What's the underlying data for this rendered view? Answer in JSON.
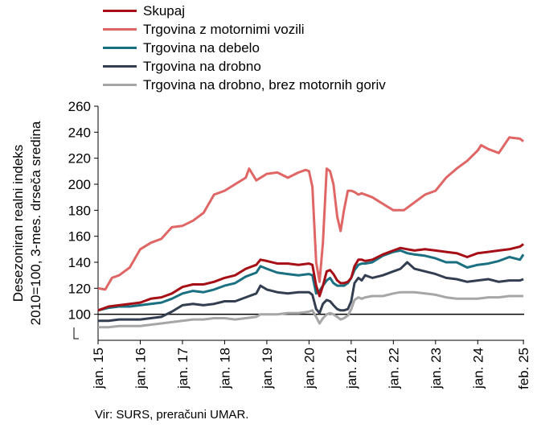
{
  "chart_data": {
    "type": "line",
    "ylabel": "Desezoniran realni indeks\n2010=100, 3-mes. drseča sredina",
    "ylim": [
      80,
      260
    ],
    "yticks": [
      100,
      120,
      140,
      160,
      180,
      200,
      220,
      240,
      260
    ],
    "ytick_labels": [
      "100",
      "120",
      "140",
      "160",
      "180",
      "200",
      "220",
      "240",
      "260"
    ],
    "xlim": [
      2015.0,
      2025.1
    ],
    "xticks": [
      2015,
      2016,
      2017,
      2018,
      2019,
      2020,
      2021,
      2022,
      2023,
      2024,
      2025.083
    ],
    "xtick_labels": [
      "jan. 15",
      "jan. 16",
      "jan. 17",
      "jan. 18",
      "jan. 19",
      "jan. 20",
      "jan. 21",
      "jan. 22",
      "jan. 23",
      "jan. 24",
      "feb. 25"
    ],
    "baseline": 100,
    "legend_position": "top-left",
    "grid": false,
    "source": "Vir: SURS, preračuni UMAR.",
    "series": [
      {
        "name": "Skupaj",
        "color": "#a50f15",
        "x": [
          2015.0,
          2015.25,
          2015.5,
          2015.75,
          2016.0,
          2016.25,
          2016.5,
          2016.75,
          2017.0,
          2017.25,
          2017.5,
          2017.75,
          2018.0,
          2018.25,
          2018.5,
          2018.75,
          2018.85,
          2019.0,
          2019.25,
          2019.5,
          2019.75,
          2020.0,
          2020.08,
          2020.17,
          2020.25,
          2020.33,
          2020.42,
          2020.5,
          2020.58,
          2020.67,
          2020.75,
          2020.83,
          2020.92,
          2021.0,
          2021.08,
          2021.17,
          2021.25,
          2021.33,
          2021.5,
          2021.75,
          2022.0,
          2022.17,
          2022.33,
          2022.5,
          2022.75,
          2023.0,
          2023.25,
          2023.5,
          2023.75,
          2024.0,
          2024.25,
          2024.5,
          2024.75,
          2025.0,
          2025.083
        ],
        "y": [
          103,
          106,
          107,
          108,
          109,
          112,
          113,
          116,
          121,
          123,
          123,
          125,
          128,
          130,
          135,
          138,
          142,
          141,
          139,
          139,
          138,
          139,
          138,
          122,
          114,
          122,
          133,
          134,
          131,
          126,
          124,
          124,
          125,
          128,
          137,
          142,
          142,
          141,
          142,
          146,
          149,
          151,
          150,
          149,
          150,
          149,
          148,
          147,
          144,
          147,
          148,
          149,
          150,
          152,
          154
        ]
      },
      {
        "name": "Trgovina z motornimi vozili",
        "color": "#e06666",
        "x": [
          2015.0,
          2015.17,
          2015.33,
          2015.5,
          2015.75,
          2016.0,
          2016.25,
          2016.5,
          2016.75,
          2017.0,
          2017.25,
          2017.5,
          2017.75,
          2018.0,
          2018.25,
          2018.5,
          2018.58,
          2018.75,
          2019.0,
          2019.25,
          2019.5,
          2019.75,
          2019.92,
          2020.0,
          2020.08,
          2020.17,
          2020.25,
          2020.33,
          2020.42,
          2020.5,
          2020.58,
          2020.67,
          2020.75,
          2020.83,
          2020.92,
          2021.0,
          2021.08,
          2021.17,
          2021.25,
          2021.5,
          2021.75,
          2022.0,
          2022.25,
          2022.5,
          2022.75,
          2023.0,
          2023.25,
          2023.5,
          2023.75,
          2024.0,
          2024.08,
          2024.25,
          2024.5,
          2024.75,
          2025.0,
          2025.083
        ],
        "y": [
          120,
          119,
          128,
          130,
          136,
          150,
          155,
          158,
          167,
          168,
          172,
          178,
          192,
          195,
          200,
          205,
          212,
          203,
          208,
          209,
          205,
          209,
          211,
          210,
          198,
          140,
          125,
          155,
          212,
          210,
          200,
          175,
          164,
          180,
          195,
          195,
          194,
          192,
          193,
          190,
          185,
          180,
          180,
          186,
          192,
          195,
          205,
          212,
          218,
          226,
          230,
          227,
          224,
          236,
          235,
          233
        ]
      },
      {
        "name": "Trgovina na debelo",
        "color": "#1a7080",
        "x": [
          2015.0,
          2015.25,
          2015.5,
          2015.75,
          2016.0,
          2016.25,
          2016.5,
          2016.75,
          2017.0,
          2017.25,
          2017.5,
          2017.75,
          2018.0,
          2018.25,
          2018.5,
          2018.75,
          2018.85,
          2019.0,
          2019.25,
          2019.5,
          2019.75,
          2020.0,
          2020.08,
          2020.17,
          2020.25,
          2020.33,
          2020.42,
          2020.5,
          2020.58,
          2020.67,
          2020.75,
          2020.83,
          2020.92,
          2021.0,
          2021.08,
          2021.17,
          2021.25,
          2021.33,
          2021.5,
          2021.75,
          2022.0,
          2022.17,
          2022.33,
          2022.5,
          2022.75,
          2023.0,
          2023.25,
          2023.5,
          2023.75,
          2024.0,
          2024.25,
          2024.5,
          2024.75,
          2025.0,
          2025.083
        ],
        "y": [
          103,
          105,
          106,
          106,
          107,
          108,
          109,
          112,
          116,
          118,
          117,
          119,
          122,
          124,
          129,
          132,
          137,
          135,
          132,
          131,
          130,
          131,
          130,
          116,
          118,
          122,
          126,
          128,
          124,
          122,
          122,
          122,
          124,
          128,
          134,
          138,
          139,
          139,
          140,
          145,
          148,
          149,
          147,
          146,
          145,
          143,
          140,
          140,
          136,
          138,
          139,
          141,
          144,
          142,
          146
        ]
      },
      {
        "name": "Trgovina na drobno",
        "color": "#333f50",
        "x": [
          2015.0,
          2015.25,
          2015.5,
          2015.75,
          2016.0,
          2016.25,
          2016.5,
          2016.75,
          2017.0,
          2017.25,
          2017.5,
          2017.75,
          2018.0,
          2018.25,
          2018.5,
          2018.75,
          2018.85,
          2019.0,
          2019.25,
          2019.5,
          2019.75,
          2020.0,
          2020.08,
          2020.17,
          2020.25,
          2020.33,
          2020.42,
          2020.5,
          2020.58,
          2020.67,
          2020.75,
          2020.83,
          2020.92,
          2021.0,
          2021.08,
          2021.17,
          2021.25,
          2021.33,
          2021.5,
          2021.75,
          2022.0,
          2022.17,
          2022.33,
          2022.5,
          2022.75,
          2023.0,
          2023.25,
          2023.5,
          2023.75,
          2024.0,
          2024.25,
          2024.5,
          2024.75,
          2025.0,
          2025.083
        ],
        "y": [
          95,
          95,
          96,
          96,
          96,
          97,
          98,
          102,
          107,
          108,
          107,
          108,
          110,
          110,
          113,
          116,
          122,
          119,
          117,
          116,
          117,
          117,
          115,
          104,
          101,
          108,
          111,
          110,
          107,
          104,
          103,
          103,
          104,
          110,
          124,
          128,
          126,
          130,
          128,
          130,
          133,
          135,
          140,
          135,
          133,
          131,
          128,
          127,
          125,
          126,
          127,
          125,
          126,
          126,
          127
        ]
      },
      {
        "name": "Trgovina na drobno, brez motornih goriv",
        "color": "#a6a6a6",
        "x": [
          2015.0,
          2015.25,
          2015.5,
          2015.75,
          2016.0,
          2016.25,
          2016.5,
          2016.75,
          2017.0,
          2017.25,
          2017.5,
          2017.75,
          2018.0,
          2018.25,
          2018.5,
          2018.75,
          2018.85,
          2019.0,
          2019.25,
          2019.5,
          2019.75,
          2020.0,
          2020.08,
          2020.17,
          2020.25,
          2020.33,
          2020.42,
          2020.5,
          2020.58,
          2020.67,
          2020.75,
          2020.83,
          2020.92,
          2021.0,
          2021.08,
          2021.17,
          2021.25,
          2021.33,
          2021.5,
          2021.75,
          2022.0,
          2022.17,
          2022.33,
          2022.5,
          2022.75,
          2023.0,
          2023.25,
          2023.5,
          2023.75,
          2024.0,
          2024.25,
          2024.5,
          2024.75,
          2025.0,
          2025.083
        ],
        "y": [
          90,
          90,
          91,
          91,
          91,
          92,
          93,
          94,
          95,
          96,
          96,
          97,
          97,
          96,
          97,
          98,
          100,
          100,
          100,
          101,
          101,
          102,
          103,
          98,
          93,
          97,
          100,
          101,
          100,
          98,
          96,
          97,
          99,
          104,
          111,
          113,
          112,
          113,
          114,
          114,
          116,
          117,
          117,
          117,
          116,
          115,
          113,
          112,
          112,
          112,
          113,
          113,
          114,
          114,
          114
        ]
      }
    ]
  }
}
